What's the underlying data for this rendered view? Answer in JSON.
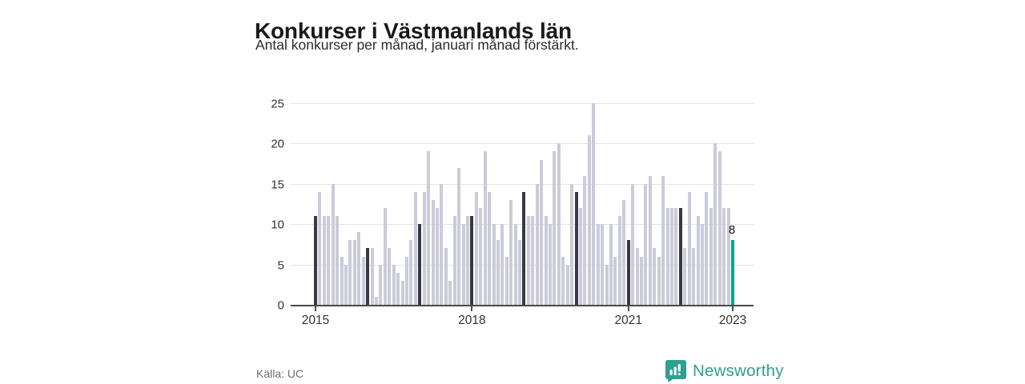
{
  "header": {
    "title": "Konkurser i Västmanlands län",
    "subtitle": "Antal konkurser per månad, januari månad förstärkt."
  },
  "footer": {
    "source": "Källa: UC",
    "brand": "Newsworthy"
  },
  "colors": {
    "bar_regular": "#cbcbd9",
    "bar_january": "#383848",
    "bar_highlight": "#00a78c",
    "brand_teal": "#2f9f90",
    "gridline": "#e4e4e4",
    "axis": "#4a4a4a"
  },
  "chart_data": {
    "type": "bar",
    "title": "Konkurser i Västmanlands län",
    "subtitle": "Antal konkurser per månad, januari månad förstärkt.",
    "xlabel": "",
    "ylabel": "",
    "ylim": [
      0,
      25
    ],
    "yticks": [
      0,
      5,
      10,
      15,
      20,
      25
    ],
    "xticks": [
      {
        "label": "2015",
        "year": 2015
      },
      {
        "label": "2018",
        "year": 2018
      },
      {
        "label": "2021",
        "year": 2021
      },
      {
        "label": "2023",
        "year": 2023
      }
    ],
    "grid": true,
    "legend": false,
    "start_month": "2015-01",
    "end_month": "2023-01",
    "january_emphasized": true,
    "values_by_year": {
      "2015": [
        11,
        14,
        11,
        11,
        15,
        11,
        6,
        5,
        8,
        8,
        9,
        6
      ],
      "2016": [
        7,
        7,
        1,
        5,
        12,
        7,
        5,
        4,
        3,
        6,
        8,
        14
      ],
      "2017": [
        10,
        14,
        19,
        13,
        12,
        15,
        7,
        3,
        11,
        17,
        10,
        11
      ],
      "2018": [
        11,
        14,
        12,
        19,
        14,
        10,
        8,
        10,
        6,
        13,
        10,
        8
      ],
      "2019": [
        14,
        11,
        11,
        15,
        18,
        11,
        10,
        19,
        20,
        6,
        5,
        15
      ],
      "2020": [
        14,
        12,
        16,
        21,
        25,
        10,
        10,
        5,
        10,
        6,
        11,
        13
      ],
      "2021": [
        8,
        15,
        7,
        6,
        15,
        16,
        7,
        6,
        16,
        12,
        12,
        12
      ],
      "2022": [
        12,
        7,
        14,
        7,
        11,
        10,
        14,
        12,
        20,
        19,
        12,
        12
      ],
      "2023": [
        8
      ]
    },
    "last_bar": {
      "month": "2023-01",
      "value": 8,
      "label": "8",
      "highlighted": true
    }
  }
}
